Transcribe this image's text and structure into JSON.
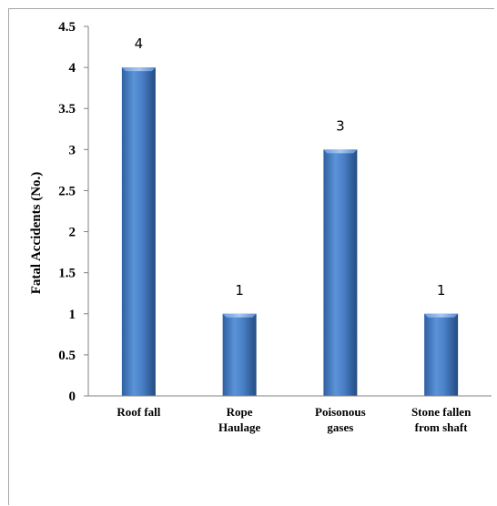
{
  "chart_data": {
    "type": "bar",
    "categories": [
      [
        "Roof fall"
      ],
      [
        "Rope",
        "Haulage"
      ],
      [
        "Poisonous",
        "gases"
      ],
      [
        "Stone fallen",
        "from shaft"
      ]
    ],
    "values": [
      4,
      1,
      3,
      1
    ],
    "data_labels": [
      "4",
      "1",
      "3",
      "1"
    ],
    "title": "",
    "xlabel": "",
    "ylabel": "Fatal Accidents (No.)",
    "ylim": [
      0,
      4.5
    ],
    "yticks": [
      "0",
      "0.5",
      "1",
      "1.5",
      "2",
      "2.5",
      "3",
      "3.5",
      "4",
      "4.5"
    ],
    "grid": false,
    "legend": "none",
    "bar_color": "#4a7ebb"
  }
}
